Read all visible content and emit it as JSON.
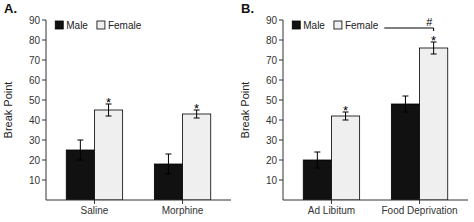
{
  "chart_data": [
    {
      "type": "bar",
      "title": "A.",
      "categories": [
        "Saline",
        "Morphine"
      ],
      "series": [
        {
          "name": "Male",
          "color": "#111111",
          "values": [
            25,
            18
          ],
          "errors": [
            5,
            5
          ]
        },
        {
          "name": "Female",
          "color": "#efefef",
          "values": [
            45,
            43
          ],
          "errors": [
            3,
            2
          ]
        }
      ],
      "ylabel": "Break Point",
      "ylim": [
        0,
        90
      ],
      "yticks": [
        10,
        20,
        30,
        40,
        50,
        60,
        70,
        80,
        90
      ],
      "grid": false,
      "legend": "upper left",
      "annotations": [
        {
          "text": "*",
          "series": "Female",
          "category": "Saline"
        },
        {
          "text": "*",
          "series": "Female",
          "category": "Morphine"
        }
      ]
    },
    {
      "type": "bar",
      "title": "B.",
      "categories": [
        "Ad Libitum",
        "Food Deprivation"
      ],
      "series": [
        {
          "name": "Male",
          "color": "#111111",
          "values": [
            20,
            48
          ],
          "errors": [
            4,
            4
          ]
        },
        {
          "name": "Female",
          "color": "#efefef",
          "values": [
            42,
            76
          ],
          "errors": [
            2,
            3
          ]
        }
      ],
      "ylabel": "Break Point",
      "ylim": [
        0,
        90
      ],
      "yticks": [
        10,
        20,
        30,
        40,
        50,
        60,
        70,
        80,
        90
      ],
      "grid": false,
      "legend": "upper left",
      "annotations": [
        {
          "text": "*",
          "series": "Female",
          "category": "Ad Libitum"
        },
        {
          "text": "*",
          "series": "Female",
          "category": "Food Deprivation"
        },
        {
          "text": "#",
          "y": 86,
          "series": "Female",
          "category": "Food Deprivation"
        }
      ]
    }
  ]
}
